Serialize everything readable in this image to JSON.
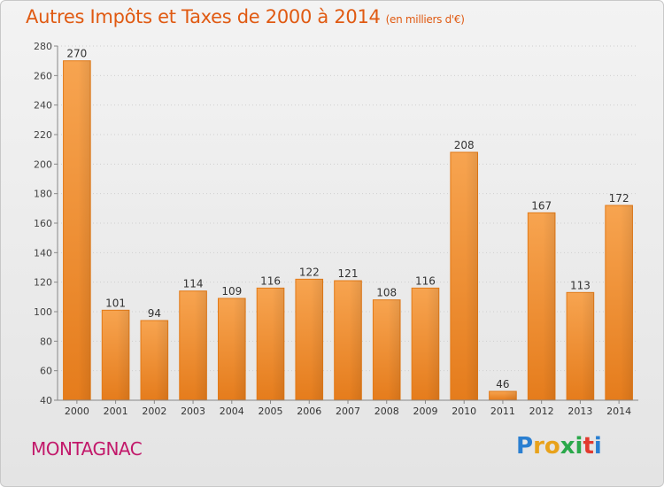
{
  "header": {
    "title": "Autres Impôts et Taxes de 2000 à 2014",
    "subtitle": "(en milliers d'€)"
  },
  "footer": {
    "commune": "MONTAGNAC",
    "logo_letters": [
      {
        "ch": "P",
        "color": "#2a7fd1"
      },
      {
        "ch": "r",
        "color": "#e8a21b"
      },
      {
        "ch": "o",
        "color": "#e8a21b"
      },
      {
        "ch": "x",
        "color": "#2aa84a"
      },
      {
        "ch": "i",
        "color": "#2aa84a"
      },
      {
        "ch": "t",
        "color": "#e23a2e"
      },
      {
        "ch": "i",
        "color": "#2a7fd1"
      }
    ]
  },
  "chart_data": {
    "type": "bar",
    "categories": [
      "2000",
      "2001",
      "2002",
      "2003",
      "2004",
      "2005",
      "2006",
      "2007",
      "2008",
      "2009",
      "2010",
      "2011",
      "2012",
      "2013",
      "2014"
    ],
    "values": [
      270,
      101,
      94,
      114,
      109,
      116,
      122,
      121,
      108,
      116,
      208,
      46,
      167,
      113,
      172
    ],
    "ylim": [
      40,
      280
    ],
    "yticks": [
      40,
      60,
      80,
      100,
      120,
      140,
      160,
      180,
      200,
      220,
      240,
      260,
      280
    ],
    "grid": true,
    "bar_color": "#f28c28",
    "bar_color_light": "#f6a04c",
    "bar_color_dark": "#e07a14"
  }
}
